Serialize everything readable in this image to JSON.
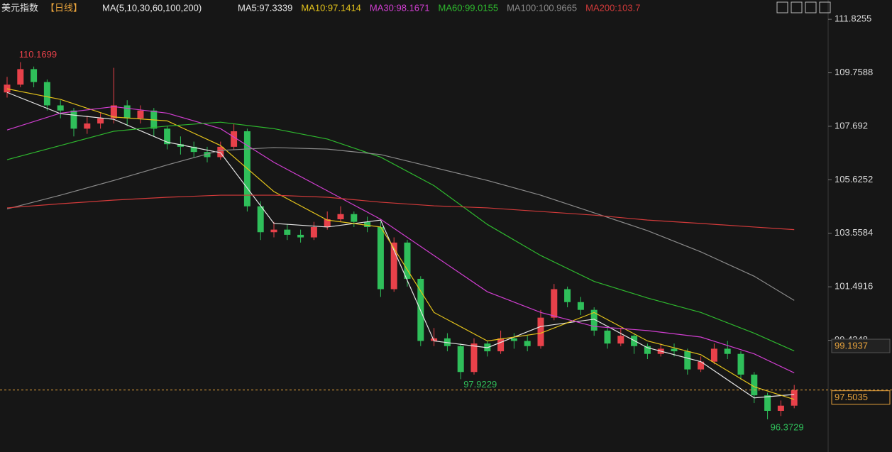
{
  "chart_data": {
    "type": "candlestick",
    "title": "美元指数",
    "period": "【日线】",
    "indicator": "MA(5,10,30,60,100,200)",
    "up_color": "#e8414a",
    "down_color": "#2fbf5a",
    "candles": {
      "open": [
        109.0,
        109.3,
        109.9,
        109.4,
        108.5,
        108.3,
        107.6,
        107.8,
        108.0,
        108.5,
        108.0,
        108.3,
        107.6,
        107.0,
        106.9,
        106.7,
        106.5,
        106.9,
        107.5,
        104.6,
        103.6,
        103.7,
        103.5,
        103.4,
        103.8,
        104.1,
        104.3,
        104.0,
        103.8,
        101.4,
        103.2,
        101.8,
        99.4,
        99.5,
        99.2,
        98.2,
        99.3,
        99.0,
        99.5,
        99.4,
        99.2,
        100.3,
        101.4,
        100.9,
        100.6,
        99.8,
        99.3,
        99.6,
        99.2,
        98.9,
        99.1,
        99.0,
        98.3,
        98.6,
        99.1,
        98.9,
        98.1,
        97.3,
        96.7,
        96.9
      ],
      "high": [
        109.6,
        110.1699,
        110.0,
        109.5,
        108.7,
        108.4,
        108.1,
        108.2,
        109.95,
        108.7,
        108.5,
        108.4,
        107.7,
        107.3,
        107.1,
        106.9,
        107.1,
        107.8,
        107.6,
        104.8,
        104.0,
        103.9,
        103.7,
        104.0,
        104.4,
        104.6,
        104.4,
        104.2,
        104.0,
        103.4,
        103.3,
        101.9,
        99.9,
        99.7,
        99.3,
        99.5,
        99.4,
        99.8,
        99.7,
        99.6,
        100.6,
        101.6,
        101.5,
        101.1,
        100.7,
        99.9,
        99.9,
        99.7,
        99.3,
        99.3,
        99.3,
        99.1,
        98.8,
        99.3,
        99.4,
        99.0,
        98.2,
        97.4,
        97.1,
        97.7
      ],
      "low": [
        108.8,
        109.2,
        109.2,
        108.3,
        108.0,
        107.3,
        107.4,
        107.6,
        107.8,
        107.7,
        107.8,
        107.3,
        106.8,
        106.6,
        106.5,
        106.3,
        106.4,
        106.8,
        104.4,
        103.3,
        103.4,
        103.3,
        103.2,
        103.3,
        103.7,
        104.0,
        103.8,
        103.6,
        101.1,
        101.3,
        101.5,
        99.2,
        99.2,
        99.0,
        97.9229,
        98.1,
        98.8,
        98.9,
        99.1,
        99.0,
        99.1,
        100.2,
        100.7,
        100.4,
        99.6,
        99.1,
        99.2,
        98.9,
        98.7,
        98.8,
        98.8,
        98.1,
        98.2,
        98.5,
        98.7,
        97.9,
        97.0,
        96.3729,
        96.5,
        96.8
      ],
      "close": [
        109.3,
        109.9,
        109.4,
        108.5,
        108.3,
        107.6,
        107.8,
        108.0,
        108.5,
        108.0,
        108.3,
        107.6,
        107.0,
        106.9,
        106.7,
        106.5,
        106.9,
        107.5,
        104.6,
        103.6,
        103.7,
        103.5,
        103.4,
        103.8,
        104.1,
        104.3,
        104.0,
        103.8,
        101.4,
        103.2,
        101.8,
        99.4,
        99.5,
        99.2,
        98.2,
        99.3,
        99.0,
        99.5,
        99.4,
        99.2,
        100.3,
        101.4,
        100.9,
        100.6,
        99.8,
        99.3,
        99.6,
        99.2,
        98.9,
        99.1,
        99.0,
        98.3,
        98.6,
        99.1,
        98.9,
        98.1,
        97.3,
        96.7,
        96.9,
        97.5035
      ]
    },
    "series": [
      {
        "name": "MA5:97.3339",
        "color": "#e6e6e6",
        "x": [
          0,
          4,
          8,
          12,
          16,
          20,
          24,
          28,
          32,
          36,
          40,
          44,
          48,
          52,
          56,
          59
        ],
        "values": [
          109.0,
          108.18,
          107.96,
          107.08,
          106.67,
          103.94,
          103.8,
          104.07,
          99.4,
          99.14,
          99.96,
          100.24,
          99.14,
          98.6,
          97.2,
          97.3339
        ]
      },
      {
        "name": "MA10:97.1414",
        "color": "#e3c21b",
        "x": [
          0,
          4,
          8,
          12,
          16,
          20,
          24,
          28,
          32,
          36,
          40,
          44,
          48,
          52,
          56,
          59
        ],
        "values": [
          109.14,
          108.73,
          108.05,
          107.9,
          106.95,
          105.17,
          104.07,
          103.8,
          100.5,
          99.4,
          99.7,
          100.5,
          99.4,
          98.87,
          97.63,
          97.1414
        ]
      },
      {
        "name": "MA30:98.1671",
        "color": "#d03ed0",
        "x": [
          0,
          4,
          8,
          12,
          16,
          20,
          24,
          28,
          32,
          36,
          40,
          44,
          48,
          52,
          56,
          59
        ],
        "values": [
          107.55,
          108.2,
          108.45,
          108.2,
          107.6,
          106.3,
          105.2,
          104.1,
          102.7,
          101.3,
          100.5,
          99.96,
          99.8,
          99.55,
          98.9,
          98.1671
        ]
      },
      {
        "name": "MA60:99.0155",
        "color": "#2eb82e",
        "x": [
          0,
          4,
          8,
          12,
          16,
          20,
          24,
          28,
          32,
          36,
          40,
          44,
          48,
          52,
          56,
          59
        ],
        "values": [
          106.4,
          106.95,
          107.5,
          107.7,
          107.85,
          107.6,
          107.2,
          106.5,
          105.4,
          103.9,
          102.7,
          101.7,
          101.06,
          100.5,
          99.7,
          99.0155
        ]
      },
      {
        "name": "MA100:100.9665",
        "color": "#8a8a8a",
        "x": [
          0,
          4,
          8,
          12,
          16,
          20,
          24,
          28,
          32,
          36,
          40,
          44,
          48,
          52,
          56,
          59
        ],
        "values": [
          104.5,
          105.03,
          105.6,
          106.2,
          106.76,
          106.87,
          106.81,
          106.6,
          106.1,
          105.6,
          105.03,
          104.35,
          103.66,
          102.84,
          101.9,
          100.9665
        ]
      },
      {
        "name": "MA200:103.7",
        "color": "#d23a3a",
        "x": [
          0,
          4,
          8,
          12,
          16,
          20,
          24,
          28,
          32,
          36,
          40,
          44,
          48,
          52,
          56,
          59
        ],
        "values": [
          104.54,
          104.7,
          104.84,
          104.95,
          105.03,
          105.03,
          104.95,
          104.76,
          104.62,
          104.54,
          104.4,
          104.26,
          104.07,
          103.94,
          103.8,
          103.7
        ]
      }
    ],
    "marker_value": 99.1937,
    "ylim": [
      95.11,
      112.57
    ],
    "yticks": [
      111.8255,
      109.7588,
      107.692,
      105.6252,
      103.5584,
      101.4916,
      99.4248
    ]
  }
}
